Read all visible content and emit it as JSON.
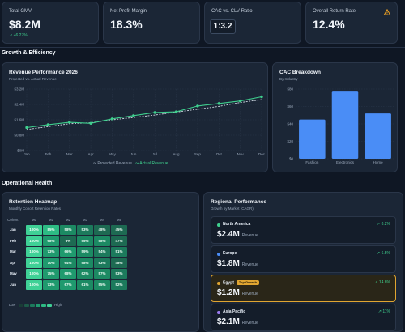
{
  "kpis": [
    {
      "label": "Total GMV",
      "value": "$8.2M",
      "delta": "+6.27%"
    },
    {
      "label": "Net Profit Margin",
      "value": "18.3%"
    },
    {
      "label": "CAC vs. CLV Ratio",
      "value": "1:3.2"
    },
    {
      "label": "Overall Return Rate",
      "value": "12.4%",
      "icon": "warning-icon",
      "icon_color": "#f5a623"
    }
  ],
  "sections": {
    "growth": "Growth & Efficiency",
    "operational": "Operational Health"
  },
  "revenue": {
    "title": "Revenue Performance 2026",
    "subtitle": "Projected vs. Actual Revenue",
    "legend_projected": "Projected Revenue",
    "legend_actual": "Actual Revenue"
  },
  "cac": {
    "title": "CAC Breakdown",
    "subtitle": "By Industry"
  },
  "heatmap": {
    "title": "Retention Heatmap",
    "subtitle": "Monthly Cohort Retention Rates",
    "cohort_label": "Cohort",
    "columns": [
      "M0",
      "M1",
      "M2",
      "M3",
      "M4",
      "M5"
    ],
    "rows": [
      {
        "cohort": "Jan",
        "values": [
          "100%",
          "85%",
          "58%",
          "53%",
          "48%",
          "45%"
        ]
      },
      {
        "cohort": "Feb",
        "values": [
          "100%",
          "68%",
          "6%",
          "55%",
          "58%",
          "47%"
        ]
      },
      {
        "cohort": "Mar",
        "values": [
          "100%",
          "73%",
          "66%",
          "59%",
          "54%",
          "51%"
        ]
      },
      {
        "cohort": "Apr",
        "values": [
          "100%",
          "70%",
          "64%",
          "58%",
          "53%",
          "48%"
        ]
      },
      {
        "cohort": "May",
        "values": [
          "100%",
          "75%",
          "68%",
          "62%",
          "57%",
          "53%"
        ]
      },
      {
        "cohort": "Jun",
        "values": [
          "100%",
          "73%",
          "67%",
          "61%",
          "55%",
          "52%"
        ]
      }
    ],
    "legend_low": "Low",
    "legend_high": "High"
  },
  "regional": {
    "title": "Regional Performance",
    "subtitle": "Growth by Market (CAGR)",
    "items": [
      {
        "name": "North America",
        "value": "$2.4M",
        "unit": "Revenue",
        "growth": "8.2%",
        "dot": "#3fcf8e"
      },
      {
        "name": "Europe",
        "value": "$1.8M",
        "unit": "Revenue",
        "growth": "6.5%",
        "dot": "#4a8df6"
      },
      {
        "name": "Egypt",
        "badge": "Top Growth",
        "value": "$1.2M",
        "unit": "Revenue",
        "growth": "14.8%",
        "dot": "#e0a531"
      },
      {
        "name": "Asia Pacific",
        "value": "$2.1M",
        "unit": "Revenue",
        "growth": "11%",
        "dot": "#9b7bf0"
      }
    ]
  },
  "chart_data": [
    {
      "type": "line",
      "title": "Revenue Performance 2026",
      "subtitle": "Projected vs. Actual Revenue",
      "categories": [
        "Jan",
        "Feb",
        "Mar",
        "Apr",
        "May",
        "Jun",
        "Jul",
        "Aug",
        "Sep",
        "Oct",
        "Nov",
        "Dec"
      ],
      "y_ticks": [
        "$0M",
        "$0.8M",
        "$1.6M",
        "$2.4M",
        "$3.2M"
      ],
      "ylim": [
        0,
        3.2
      ],
      "series": [
        {
          "name": "Projected Revenue",
          "style": "dashed",
          "color": "#cfd8e3",
          "values": [
            1.1,
            1.25,
            1.4,
            1.45,
            1.6,
            1.72,
            1.85,
            2.0,
            2.15,
            2.3,
            2.5,
            2.65
          ]
        },
        {
          "name": "Actual Revenue",
          "style": "solid",
          "color": "#3fcf8e",
          "values": [
            1.2,
            1.35,
            1.47,
            1.42,
            1.65,
            1.82,
            1.98,
            2.02,
            2.32,
            2.45,
            2.58,
            2.8
          ]
        }
      ],
      "grid": true,
      "legend": "bottom-center"
    },
    {
      "type": "bar",
      "title": "CAC Breakdown",
      "subtitle": "By Industry",
      "categories": [
        "Fashion",
        "Electronics",
        "Home"
      ],
      "values": [
        45,
        78,
        52
      ],
      "y_ticks": [
        "$0",
        "$20",
        "$40",
        "$60",
        "$80"
      ],
      "ylim": [
        0,
        80
      ],
      "color": "#4a8df6",
      "grid": true
    }
  ]
}
